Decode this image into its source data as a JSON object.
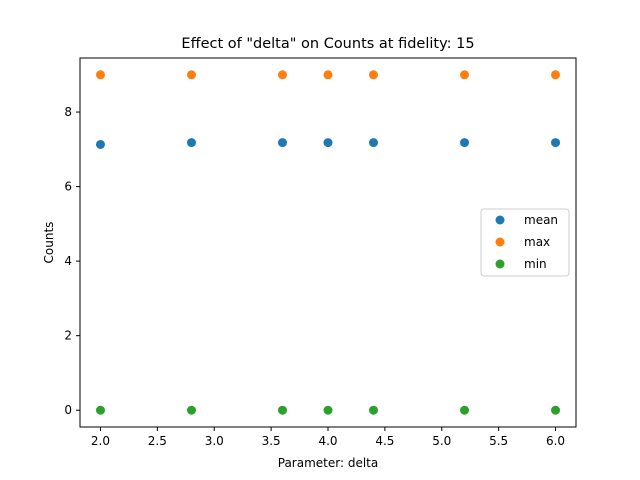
{
  "chart_data": {
    "type": "scatter",
    "title": "Effect of \"delta\" on Counts at fidelity: 15",
    "xlabel": "Parameter: delta",
    "ylabel": "Counts",
    "xlim": [
      1.82,
      6.18
    ],
    "ylim": [
      -0.45,
      9.45
    ],
    "xticks": [
      2.0,
      2.5,
      3.0,
      3.5,
      4.0,
      4.5,
      5.0,
      5.5,
      6.0
    ],
    "xtick_labels": [
      "2.0",
      "2.5",
      "3.0",
      "3.5",
      "4.0",
      "4.5",
      "5.0",
      "5.5",
      "6.0"
    ],
    "yticks": [
      0,
      2,
      4,
      6,
      8
    ],
    "ytick_labels": [
      "0",
      "2",
      "4",
      "6",
      "8"
    ],
    "grid": false,
    "legend_position": "center-right",
    "x": [
      2.0,
      2.8,
      3.6,
      4.0,
      4.4,
      5.2,
      6.0
    ],
    "series": [
      {
        "name": "mean",
        "color": "#1f77b4",
        "values": [
          7.13,
          7.18,
          7.18,
          7.18,
          7.18,
          7.18,
          7.18
        ]
      },
      {
        "name": "max",
        "color": "#ff7f0e",
        "values": [
          9,
          9,
          9,
          9,
          9,
          9,
          9
        ]
      },
      {
        "name": "min",
        "color": "#2ca02c",
        "values": [
          0,
          0,
          0,
          0,
          0,
          0,
          0
        ]
      }
    ]
  }
}
